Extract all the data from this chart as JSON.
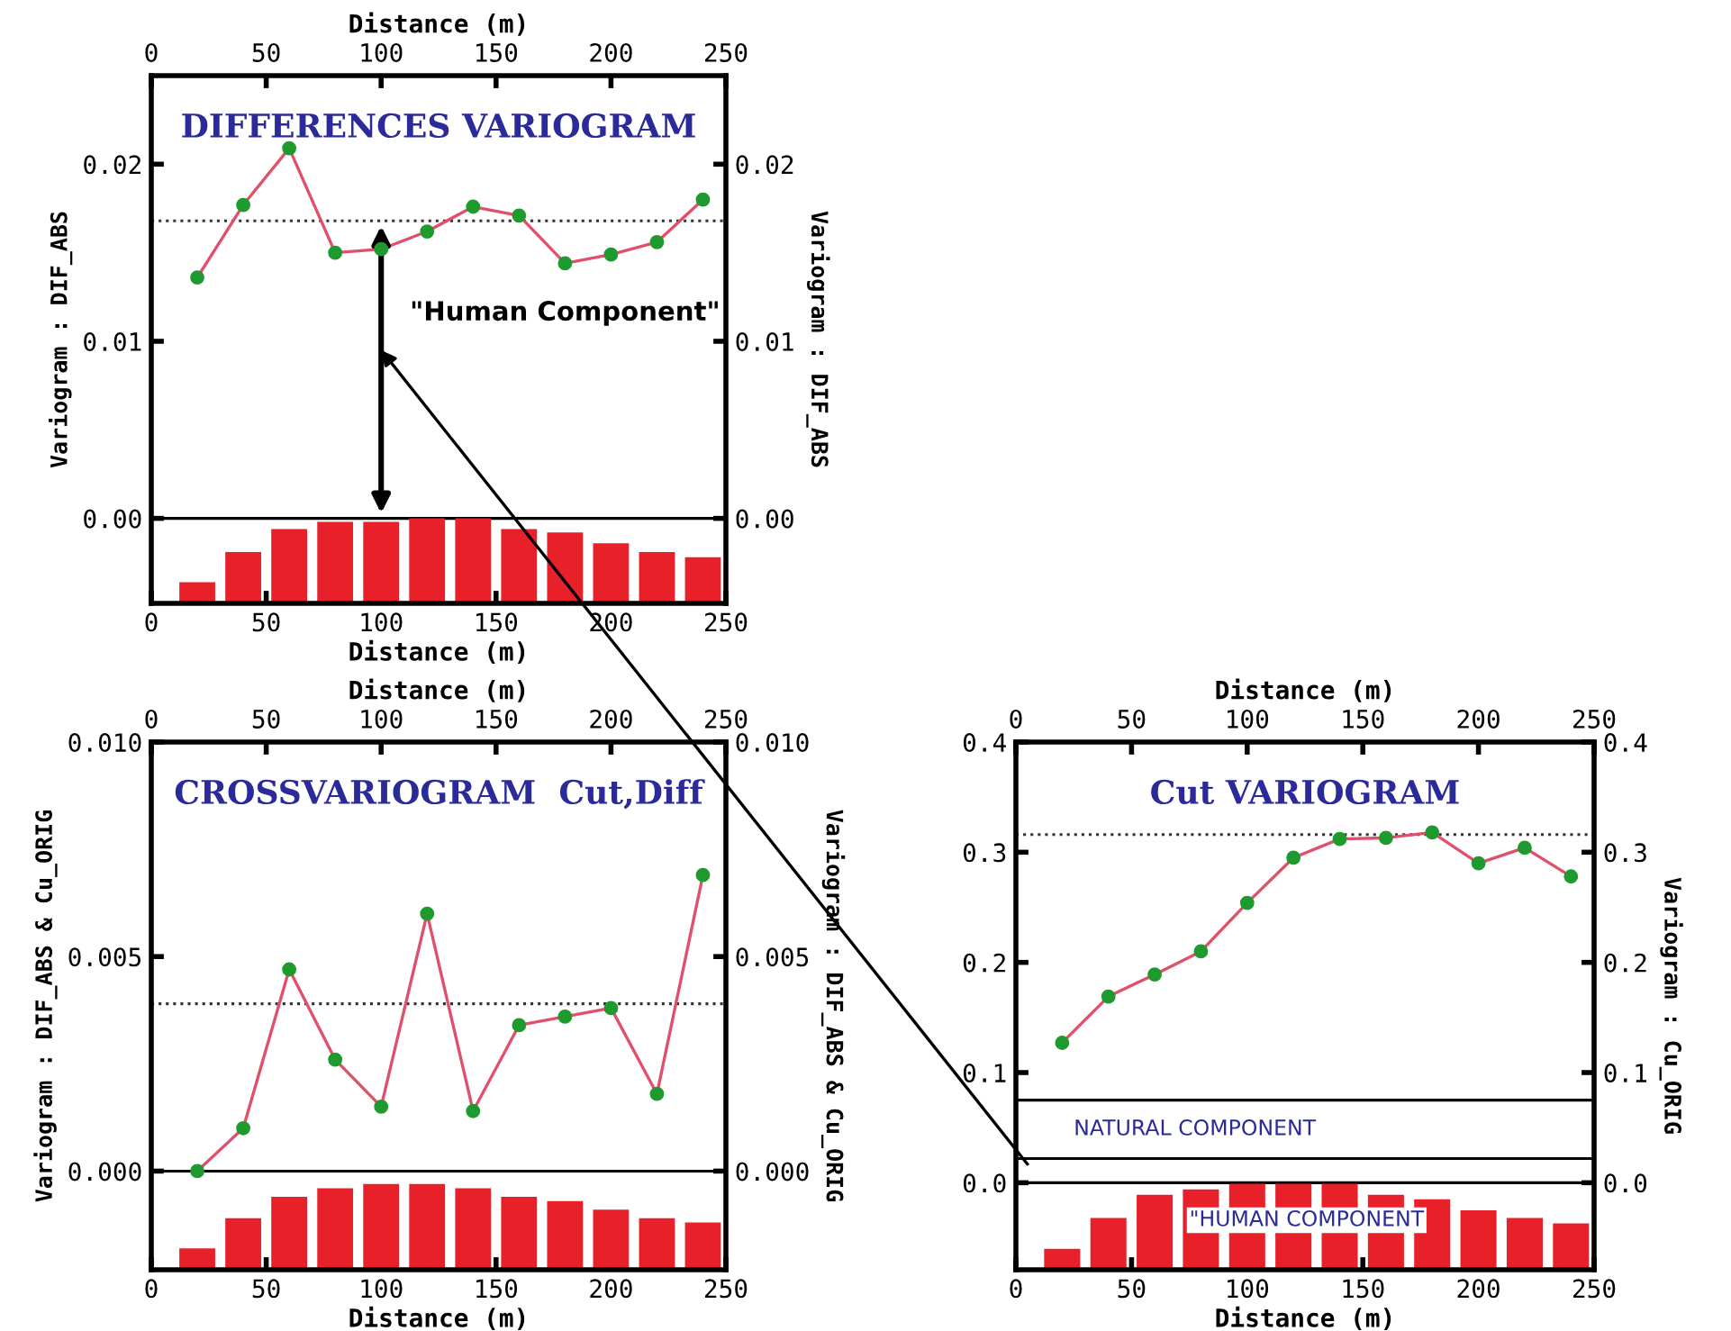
{
  "chart_data": [
    {
      "type": "line",
      "title": "DIFFERENCES VARIOGRAM",
      "xlabel": "Distance (m)",
      "x2label": "Distance (m)",
      "ylabel": "Variogram : DIF_ABS",
      "y2label": "Variogram : DIF_ABS",
      "xlim": [
        0,
        250
      ],
      "xticks": [
        0,
        50,
        100,
        150,
        200,
        250
      ],
      "x2lim": [
        0,
        250
      ],
      "x2ticks": [
        0,
        50,
        100,
        150,
        200,
        250
      ],
      "ylim": [
        -0.0048,
        0.025
      ],
      "yticks": [
        {
          "value": 0,
          "label": "0.00"
        },
        {
          "value": 0.01,
          "label": "0.01"
        },
        {
          "value": 0.02,
          "label": "0.02"
        }
      ],
      "y2lim": [
        -0.0048,
        0.025
      ],
      "y2ticks": [
        {
          "value": 0,
          "label": "0.00"
        },
        {
          "value": 0.01,
          "label": "0.01"
        },
        {
          "value": 0.02,
          "label": "0.02"
        }
      ],
      "grid": false,
      "annotations": [
        "\"Human Component\""
      ],
      "ref_lines": [
        {
          "axis": "y",
          "value": 0.0168,
          "color": "#333333",
          "line_style": "dotted"
        },
        {
          "axis": "y",
          "value": 0,
          "color": "#000000",
          "line_style": "solid"
        }
      ],
      "series": [
        {
          "type": "bar",
          "color": "#e8202a",
          "x": [
            20,
            40,
            60,
            80,
            100,
            120,
            140,
            160,
            180,
            200,
            220,
            240
          ],
          "base": [
            -0.0048,
            -0.0048,
            -0.0048,
            -0.0048,
            -0.0048,
            -0.0048,
            -0.0048,
            -0.0048,
            -0.0048,
            -0.0048,
            -0.0048,
            -0.0048
          ],
          "values": [
            0.0012,
            0.0029,
            0.0042,
            0.0046,
            0.0046,
            0.0048,
            0.0048,
            0.0042,
            0.004,
            0.0034,
            0.0029,
            0.0026
          ]
        },
        {
          "color": "#e0506a",
          "marker": "none",
          "line_style": "solid",
          "x": [
            20,
            40,
            60,
            80,
            100,
            120,
            140,
            160,
            180,
            200,
            220,
            240
          ],
          "values": [
            0.0136,
            0.0177,
            0.0209,
            0.015,
            0.0152,
            0.0162,
            0.0176,
            0.0171,
            0.0144,
            0.0149,
            0.0156,
            0.018
          ]
        },
        {
          "type": "scatter",
          "color": "#1e9a2e",
          "marker": "circle",
          "x": [
            20,
            40,
            60,
            80,
            100,
            120,
            140,
            160,
            180,
            200,
            220,
            240
          ],
          "values": [
            0.0136,
            0.0177,
            0.0209,
            0.015,
            0.0152,
            0.0162,
            0.0176,
            0.0171,
            0.0144,
            0.0149,
            0.0156,
            0.018
          ]
        }
      ]
    },
    {
      "type": "line",
      "title": "CROSSVARIOGRAM  Cut,Diff",
      "xlabel": "Distance (m)",
      "x2label": "Distance (m)",
      "ylabel": "Variogram : DIF_ABS & Cu_ORIG",
      "y2label": "Variogram : DIF_ABS & Cu_ORIG",
      "xlim": [
        0,
        250
      ],
      "xticks": [
        0,
        50,
        100,
        150,
        200,
        250
      ],
      "x2lim": [
        0,
        250
      ],
      "x2ticks": [
        0,
        50,
        100,
        150,
        200,
        250
      ],
      "ylim": [
        -0.0023,
        0.01
      ],
      "yticks": [
        {
          "value": 0,
          "label": "0.000"
        },
        {
          "value": 0.005,
          "label": "0.005"
        },
        {
          "value": 0.01,
          "label": "0.010"
        }
      ],
      "y2lim": [
        -0.0023,
        0.01
      ],
      "y2ticks": [
        {
          "value": 0,
          "label": "0.000"
        },
        {
          "value": 0.005,
          "label": "0.005"
        },
        {
          "value": 0.01,
          "label": "0.010"
        }
      ],
      "grid": false,
      "ref_lines": [
        {
          "axis": "y",
          "value": 0.0039,
          "color": "#333333",
          "line_style": "dotted"
        },
        {
          "axis": "y",
          "value": 0,
          "color": "#000000",
          "line_style": "solid"
        }
      ],
      "series": [
        {
          "type": "bar",
          "color": "#e8202a",
          "x": [
            20,
            40,
            60,
            80,
            100,
            120,
            140,
            160,
            180,
            200,
            220,
            240
          ],
          "base": [
            -0.0023,
            -0.0023,
            -0.0023,
            -0.0023,
            -0.0023,
            -0.0023,
            -0.0023,
            -0.0023,
            -0.0023,
            -0.0023,
            -0.0023,
            -0.0023
          ],
          "values": [
            0.0005,
            0.0012,
            0.0017,
            0.0019,
            0.002,
            0.002,
            0.0019,
            0.0017,
            0.0016,
            0.0014,
            0.0012,
            0.0011
          ]
        },
        {
          "color": "#e0506a",
          "marker": "none",
          "line_style": "solid",
          "x": [
            20,
            40,
            60,
            80,
            100,
            120,
            140,
            160,
            180,
            200,
            220,
            240
          ],
          "values": [
            0.0,
            0.001,
            0.0047,
            0.0026,
            0.0015,
            0.006,
            0.0014,
            0.0034,
            0.0036,
            0.0038,
            0.0018,
            0.0069
          ]
        },
        {
          "type": "scatter",
          "color": "#1e9a2e",
          "marker": "circle",
          "x": [
            20,
            40,
            60,
            80,
            100,
            120,
            140,
            160,
            180,
            200,
            220,
            240
          ],
          "values": [
            0.0,
            0.001,
            0.0047,
            0.0026,
            0.0015,
            0.006,
            0.0014,
            0.0034,
            0.0036,
            0.0038,
            0.0018,
            0.0069
          ]
        }
      ]
    },
    {
      "type": "line",
      "title": "Cut VARIOGRAM",
      "xlabel": "Distance (m)",
      "x2label": "Distance (m)",
      "y2label": "Variogram : Cu_ORIG",
      "xlim": [
        0,
        250
      ],
      "xticks": [
        0,
        50,
        100,
        150,
        200,
        250
      ],
      "x2lim": [
        0,
        250
      ],
      "x2ticks": [
        0,
        50,
        100,
        150,
        200,
        250
      ],
      "ylim": [
        -0.079,
        0.4
      ],
      "yticks": [
        {
          "value": 0,
          "label": "0.0"
        },
        {
          "value": 0.1,
          "label": "0.1"
        },
        {
          "value": 0.2,
          "label": "0.2"
        },
        {
          "value": 0.3,
          "label": "0.3"
        },
        {
          "value": 0.4,
          "label": "0.4"
        }
      ],
      "y2lim": [
        -0.079,
        0.4
      ],
      "y2ticks": [
        {
          "value": 0,
          "label": "0.0"
        },
        {
          "value": 0.1,
          "label": "0.1"
        },
        {
          "value": 0.2,
          "label": "0.2"
        },
        {
          "value": 0.3,
          "label": "0.3"
        },
        {
          "value": 0.4,
          "label": "0.4"
        }
      ],
      "grid": false,
      "annotations": [
        "NATURAL COMPONENT",
        "\"HUMAN COMPONENT"
      ],
      "ref_lines": [
        {
          "axis": "y",
          "value": 0.316,
          "color": "#333333",
          "line_style": "dotted"
        },
        {
          "axis": "y",
          "value": 0,
          "color": "#000000",
          "line_style": "solid"
        },
        {
          "axis": "y",
          "value": 0.075,
          "color": "#000000",
          "line_style": "solid"
        },
        {
          "axis": "y",
          "value": 0.022,
          "color": "#000000",
          "line_style": "solid"
        }
      ],
      "series": [
        {
          "type": "bar",
          "color": "#e8202a",
          "x": [
            20,
            40,
            60,
            80,
            100,
            120,
            140,
            160,
            180,
            200,
            220,
            240
          ],
          "base": [
            -0.079,
            -0.079,
            -0.079,
            -0.079,
            -0.079,
            -0.079,
            -0.079,
            -0.079,
            -0.079,
            -0.079,
            -0.079,
            -0.079
          ],
          "values": [
            0.019,
            0.047,
            0.068,
            0.073,
            0.078,
            0.078,
            0.078,
            0.068,
            0.064,
            0.054,
            0.047,
            0.042
          ]
        },
        {
          "color": "#e0506a",
          "marker": "none",
          "line_style": "solid",
          "x": [
            20,
            40,
            60,
            80,
            100,
            120,
            140,
            160,
            180,
            200,
            220,
            240
          ],
          "values": [
            0.127,
            0.169,
            0.189,
            0.21,
            0.254,
            0.295,
            0.312,
            0.313,
            0.318,
            0.29,
            0.304,
            0.278
          ]
        },
        {
          "type": "scatter",
          "color": "#1e9a2e",
          "marker": "circle",
          "x": [
            20,
            40,
            60,
            80,
            100,
            120,
            140,
            160,
            180,
            200,
            220,
            240
          ],
          "values": [
            0.127,
            0.169,
            0.189,
            0.21,
            0.254,
            0.295,
            0.312,
            0.313,
            0.318,
            0.29,
            0.304,
            0.278
          ]
        }
      ]
    }
  ]
}
